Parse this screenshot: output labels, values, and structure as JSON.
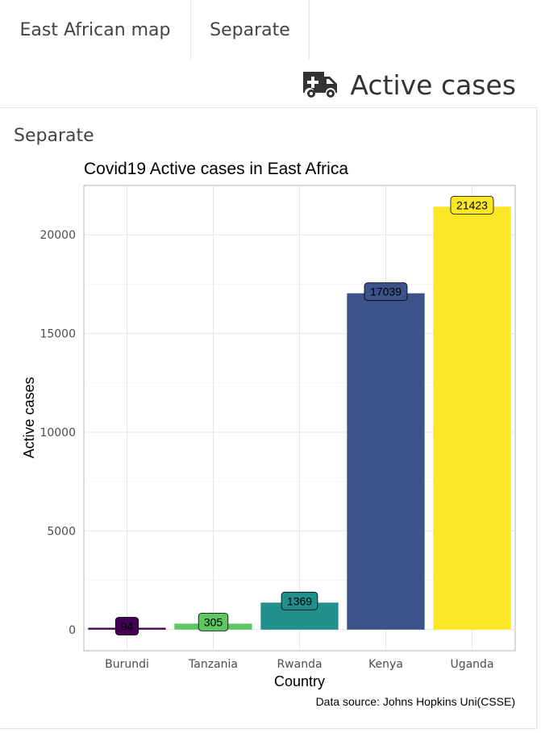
{
  "tabs": [
    {
      "label": "East African map"
    },
    {
      "label": "Separate"
    }
  ],
  "header": {
    "title": "Active cases",
    "icon": "ambulance-icon"
  },
  "card": {
    "title": "Separate"
  },
  "chart_data": {
    "type": "bar",
    "title": "Covid19 Active cases in East Africa",
    "xlabel": "Country",
    "ylabel": "Active cases",
    "caption": "Data source: Johns Hopkins Uni(CSSE)",
    "categories": [
      "Burundi",
      "Tanzania",
      "Rwanda",
      "Kenya",
      "Uganda"
    ],
    "values": [
      94,
      305,
      1369,
      17039,
      21423
    ],
    "colors": [
      "#440154",
      "#5DC863",
      "#21908C",
      "#3B528B",
      "#FDE725"
    ],
    "label_colors": [
      "#000000",
      "#000000",
      "#000000",
      "#000000",
      "#000000"
    ],
    "ylim": [
      -1070,
      22500
    ],
    "yticks": [
      0,
      5000,
      10000,
      15000,
      20000
    ],
    "grid": true,
    "legend": "none"
  }
}
